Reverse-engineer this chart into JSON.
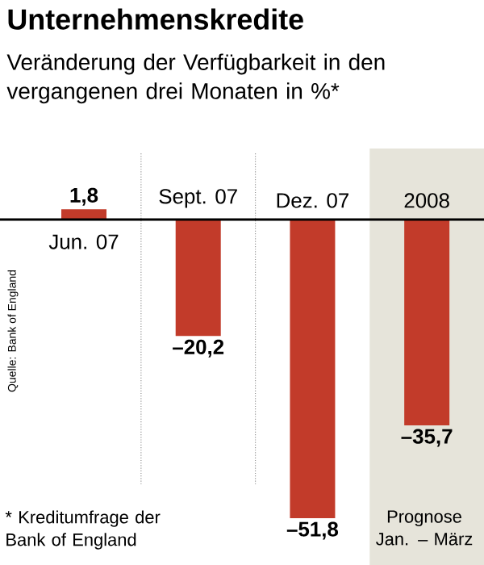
{
  "chart_data": {
    "type": "bar",
    "title": "Unternehmenskredite",
    "subtitle": "Veränderung der Verfügbarkeit in den vergangenen drei Monaten in %*",
    "categories": [
      "Jun. 07",
      "Sept. 07",
      "Dez. 07",
      "2008"
    ],
    "values": [
      1.8,
      -20.2,
      -51.8,
      -35.7
    ],
    "color": "#c23b2a",
    "value_labels": [
      "1,8",
      "–20,2",
      "–51,8",
      "–35,7"
    ],
    "bands": [
      {
        "axis": "x",
        "from": "2008",
        "to": "2008",
        "color": "#e6e4da"
      }
    ],
    "annotations": [
      "Prognose Jan. – März",
      "* Kreditumfrage der Bank of England",
      "Quelle: Bank of England"
    ],
    "grid": "x"
  }
}
